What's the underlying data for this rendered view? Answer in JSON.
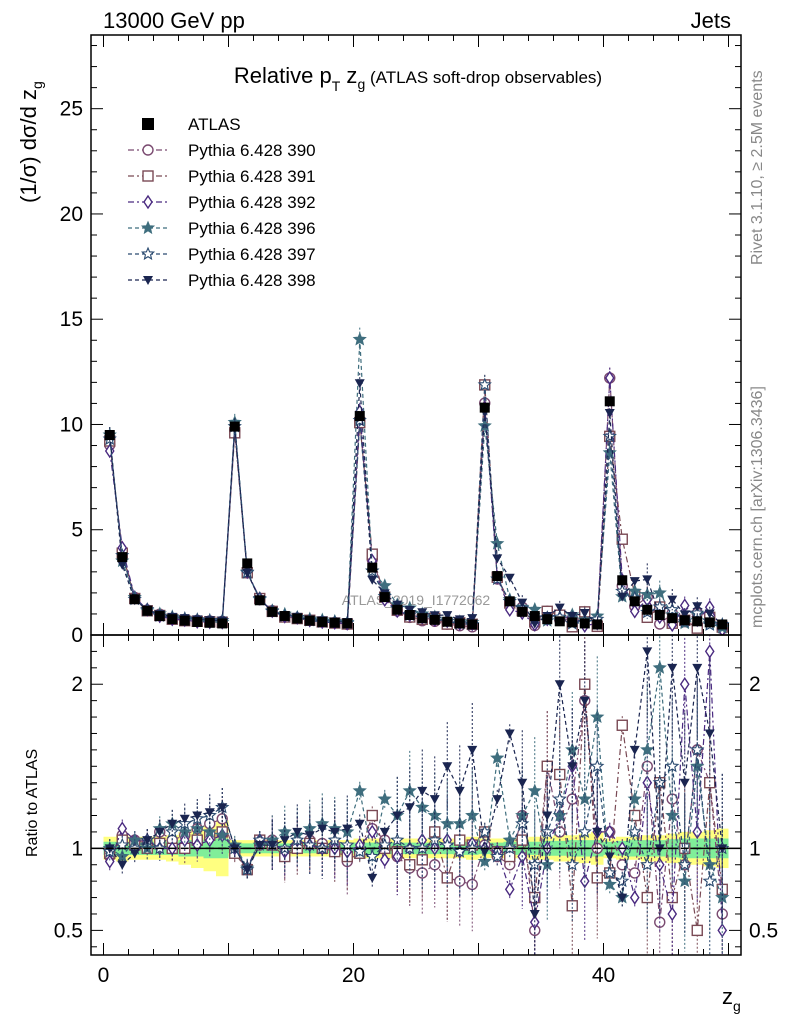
{
  "header": {
    "left": "13000 GeV pp",
    "right": "Jets"
  },
  "title": {
    "main": "Relative p",
    "sub1": "T",
    "mid": " z",
    "sub2": "g",
    "rest": " (ATLAS soft-drop observables)"
  },
  "side_texts": {
    "rivet": "Rivet 3.1.10, ≥ 2.5M events",
    "mcplots": "mcplots.cern.ch [arXiv:1306.3436]"
  },
  "watermark": "ATLAS_2019_I1772062",
  "chart_data": {
    "type": "line",
    "top_panel": {
      "ylabel": "(1/σ) dσ/d z",
      "ylabel_sub": "g",
      "ylim": [
        0,
        28.5
      ],
      "yticks": [
        0,
        5,
        10,
        15,
        20,
        25
      ]
    },
    "ratio_panel": {
      "ylabel": "Ratio to ATLAS",
      "ylim": [
        0.35,
        2.3
      ],
      "yticks": [
        0.5,
        1,
        2
      ],
      "ytick_labels": [
        "0.5",
        "1",
        "2"
      ]
    },
    "xlabel": "z",
    "xlabel_sub": "g",
    "xlim": [
      -1,
      51
    ],
    "xticks": [
      0,
      20,
      40
    ],
    "legend_position": "top-left",
    "x": [
      0.5,
      1.5,
      2.5,
      3.5,
      4.5,
      5.5,
      6.5,
      7.5,
      8.5,
      9.5,
      10.5,
      11.5,
      12.5,
      13.5,
      14.5,
      15.5,
      16.5,
      17.5,
      18.5,
      19.5,
      20.5,
      21.5,
      22.5,
      23.5,
      24.5,
      25.5,
      26.5,
      27.5,
      28.5,
      29.5,
      30.5,
      31.5,
      32.5,
      33.5,
      34.5,
      35.5,
      36.5,
      37.5,
      38.5,
      39.5,
      40.5,
      41.5,
      42.5,
      43.5,
      44.5,
      45.5,
      46.5,
      47.5,
      48.5,
      49.5
    ],
    "data": {
      "name": "ATLAS",
      "color": "#000000",
      "values": [
        9.5,
        3.7,
        1.7,
        1.15,
        0.9,
        0.75,
        0.68,
        0.62,
        0.58,
        0.55,
        9.9,
        3.4,
        1.65,
        1.1,
        0.9,
        0.78,
        0.68,
        0.62,
        0.58,
        0.55,
        10.4,
        3.2,
        1.8,
        1.2,
        0.95,
        0.8,
        0.72,
        0.63,
        0.55,
        0.5,
        10.8,
        2.8,
        1.6,
        1.1,
        0.9,
        0.75,
        0.65,
        0.6,
        0.55,
        0.5,
        11.1,
        2.6,
        1.6,
        1.2,
        0.95,
        0.8,
        0.7,
        0.65,
        0.6,
        0.5
      ]
    },
    "band_outer": [
      0.07,
      0.08,
      0.07,
      0.07,
      0.07,
      0.08,
      0.1,
      0.12,
      0.14,
      0.17,
      0.05,
      0.05,
      0.05,
      0.05,
      0.05,
      0.05,
      0.05,
      0.05,
      0.05,
      0.05,
      0.06,
      0.06,
      0.06,
      0.06,
      0.06,
      0.06,
      0.06,
      0.06,
      0.06,
      0.07,
      0.06,
      0.06,
      0.06,
      0.06,
      0.07,
      0.07,
      0.08,
      0.08,
      0.09,
      0.1,
      0.06,
      0.07,
      0.07,
      0.08,
      0.08,
      0.09,
      0.1,
      0.1,
      0.11,
      0.12
    ],
    "band_inner": [
      0.04,
      0.04,
      0.04,
      0.04,
      0.04,
      0.04,
      0.05,
      0.05,
      0.06,
      0.06,
      0.03,
      0.03,
      0.03,
      0.03,
      0.03,
      0.03,
      0.03,
      0.03,
      0.03,
      0.03,
      0.035,
      0.035,
      0.035,
      0.035,
      0.035,
      0.035,
      0.035,
      0.035,
      0.04,
      0.04,
      0.035,
      0.035,
      0.04,
      0.04,
      0.04,
      0.045,
      0.045,
      0.05,
      0.05,
      0.05,
      0.04,
      0.045,
      0.05,
      0.05,
      0.05,
      0.055,
      0.06,
      0.06,
      0.06,
      0.06
    ],
    "series": [
      {
        "name": "Pythia 6.428 390",
        "color": "#7a4a70",
        "marker": "circle-open",
        "dash": "6,3,2,3",
        "ratio": [
          0.95,
          1.08,
          1.05,
          1.03,
          1.1,
          1.05,
          1.08,
          1.12,
          1.15,
          1.18,
          0.98,
          0.87,
          1.02,
          1.05,
          0.96,
          1.02,
          1.05,
          1.03,
          1.02,
          0.92,
          0.98,
          1.12,
          1.05,
          0.95,
          0.88,
          0.85,
          0.9,
          0.82,
          0.8,
          0.78,
          1.02,
          0.95,
          0.9,
          1.2,
          0.5,
          1.5,
          1.1,
          1.3,
          1.9,
          1.0,
          1.1,
          0.9,
          0.85,
          1.5,
          0.55,
          1.3,
          0.9,
          1.6,
          1.4,
          0.6
        ]
      },
      {
        "name": "Pythia 6.428 391",
        "color": "#7a4a55",
        "marker": "square-open",
        "dash": "6,3,2,3",
        "ratio": [
          0.97,
          1.05,
          1.02,
          1.0,
          1.03,
          1.0,
          1.0,
          1.05,
          1.08,
          1.1,
          0.97,
          0.87,
          1.05,
          1.02,
          0.95,
          1.0,
          1.03,
          1.0,
          0.98,
          0.95,
          0.97,
          1.2,
          1.0,
          0.98,
          0.9,
          0.93,
          1.1,
          0.82,
          1.05,
          1.02,
          1.1,
          0.98,
          0.95,
          1.05,
          0.7,
          1.5,
          1.45,
          0.65,
          2.0,
          0.82,
          0.85,
          1.75,
          1.2,
          0.7,
          1.4,
          0.7,
          1.0,
          0.5,
          1.4,
          0.75
        ]
      },
      {
        "name": "Pythia 6.428 392",
        "color": "#4a2a80",
        "marker": "diamond-open",
        "dash": "6,3,2,3",
        "ratio": [
          0.92,
          1.12,
          1.05,
          1.05,
          1.0,
          1.0,
          1.05,
          1.02,
          1.05,
          1.08,
          1.0,
          0.88,
          1.05,
          1.03,
          0.98,
          1.05,
          1.02,
          1.0,
          1.0,
          0.98,
          1.02,
          1.1,
          0.93,
          0.95,
          1.0,
          1.05,
          1.0,
          1.05,
          0.98,
          1.03,
          1.0,
          0.98,
          0.75,
          0.95,
          0.55,
          1.0,
          1.2,
          1.5,
          0.8,
          1.1,
          1.1,
          1.0,
          0.7,
          1.4,
          0.9,
          0.6,
          2.0,
          1.1,
          2.2,
          0.5
        ]
      },
      {
        "name": "Pythia 6.428 396",
        "color": "#3f6e7e",
        "marker": "star-filled",
        "dash": "4,3",
        "ratio": [
          1.0,
          0.95,
          1.05,
          1.0,
          1.12,
          1.15,
          1.1,
          1.12,
          1.1,
          1.08,
          1.02,
          0.88,
          1.02,
          1.05,
          1.1,
          1.08,
          1.12,
          1.15,
          1.12,
          1.1,
          1.35,
          0.95,
          1.3,
          1.2,
          1.35,
          1.25,
          1.2,
          1.15,
          1.15,
          1.2,
          0.92,
          1.55,
          1.05,
          1.2,
          1.35,
          0.9,
          1.2,
          1.6,
          1.3,
          1.8,
          0.78,
          0.7,
          1.3,
          1.6,
          2.1,
          1.2,
          0.8,
          1.5,
          0.9,
          0.7
        ]
      },
      {
        "name": "Pythia 6.428 397",
        "color": "#2a4a70",
        "marker": "star-open",
        "dash": "4,3",
        "ratio": [
          0.98,
          1.02,
          1.0,
          1.05,
          1.0,
          1.1,
          1.15,
          1.18,
          1.2,
          1.25,
          1.0,
          0.87,
          1.05,
          1.02,
          1.0,
          1.05,
          1.02,
          1.0,
          1.05,
          1.02,
          0.98,
          0.95,
          1.02,
          1.05,
          1.0,
          1.0,
          1.05,
          1.02,
          0.98,
          1.0,
          1.1,
          0.95,
          1.0,
          1.15,
          0.9,
          1.1,
          1.3,
          0.9,
          1.1,
          1.5,
          0.85,
          0.8,
          1.1,
          0.9,
          1.4,
          1.5,
          0.9,
          1.6,
          0.8,
          1.0
        ]
      },
      {
        "name": "Pythia 6.428 398",
        "color": "#1a2550",
        "marker": "tri-down-filled",
        "dash": "4,3",
        "ratio": [
          1.0,
          0.9,
          0.97,
          1.05,
          1.1,
          1.15,
          1.18,
          1.2,
          1.22,
          1.25,
          1.0,
          0.87,
          1.02,
          1.02,
          1.05,
          1.1,
          1.08,
          1.12,
          1.1,
          1.12,
          1.15,
          0.82,
          1.1,
          1.2,
          1.25,
          1.35,
          1.3,
          1.5,
          1.35,
          1.6,
          0.98,
          1.3,
          1.7,
          1.4,
          0.6,
          1.2,
          2.0,
          1.5,
          1.9,
          1.1,
          0.95,
          0.7,
          1.6,
          2.2,
          1.0,
          2.1,
          1.4,
          2.1,
          1.7,
          1.0
        ]
      }
    ]
  }
}
